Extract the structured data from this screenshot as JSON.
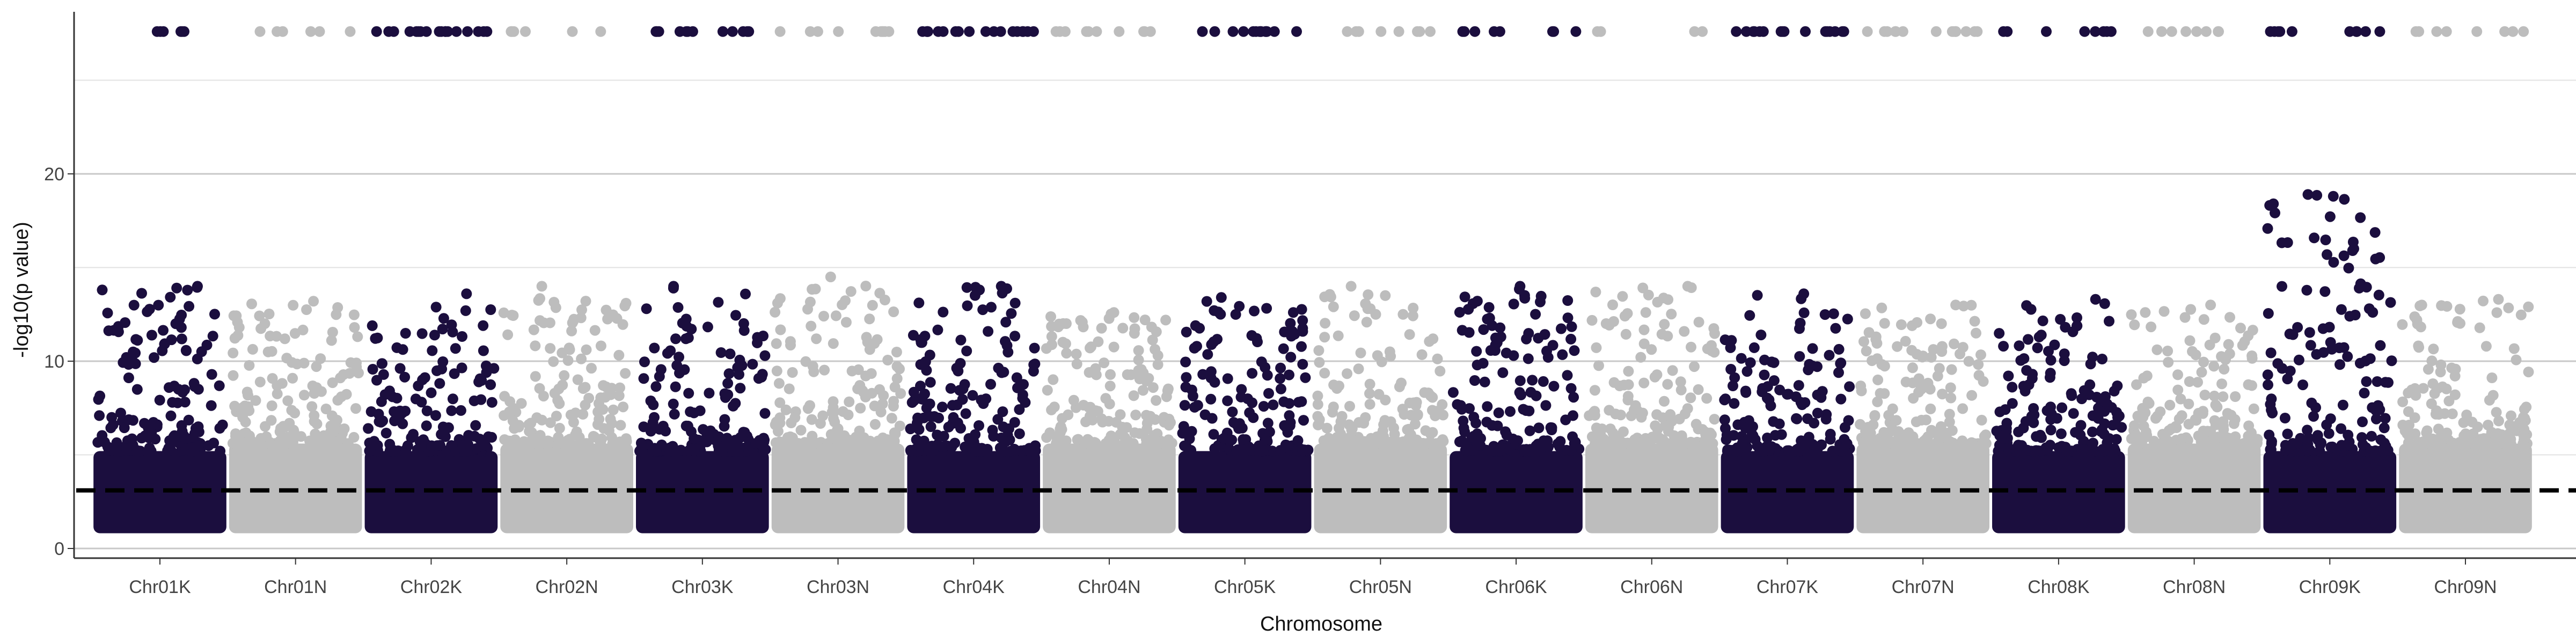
{
  "chart_data": {
    "type": "scatter",
    "title": "",
    "xlabel": "Chromosome",
    "ylabel": "-log10(p value)",
    "ylim": [
      0,
      29
    ],
    "yticks": [
      0,
      10,
      20
    ],
    "grid": "major y gridlines",
    "legend": "none",
    "threshold": {
      "value": 3.1,
      "style": "dashed black line"
    },
    "ceiling_value": 27.6,
    "colors": {
      "K": "#1b0e3e",
      "N": "#bdbdbd"
    },
    "categories": [
      "Chr01K",
      "Chr01N",
      "Chr02K",
      "Chr02N",
      "Chr03K",
      "Chr03N",
      "Chr04K",
      "Chr04N",
      "Chr05K",
      "Chr05N",
      "Chr06K",
      "Chr06N",
      "Chr07K",
      "Chr07N",
      "Chr08K",
      "Chr08N",
      "Chr09K",
      "Chr09N"
    ],
    "series": [
      {
        "category": "Chr01K",
        "group": "K",
        "peak": 14.0,
        "ceiling_hits": 6
      },
      {
        "category": "Chr01N",
        "group": "N",
        "peak": 13.2,
        "ceiling_hits": 6
      },
      {
        "category": "Chr02K",
        "group": "K",
        "peak": 13.6,
        "ceiling_hits": 18
      },
      {
        "category": "Chr02N",
        "group": "N",
        "peak": 14.0,
        "ceiling_hits": 6
      },
      {
        "category": "Chr03K",
        "group": "K",
        "peak": 14.0,
        "ceiling_hits": 12
      },
      {
        "category": "Chr03N",
        "group": "N",
        "peak": 14.5,
        "ceiling_hits": 10
      },
      {
        "category": "Chr04K",
        "group": "K",
        "peak": 14.0,
        "ceiling_hits": 18
      },
      {
        "category": "Chr04N",
        "group": "N",
        "peak": 12.6,
        "ceiling_hits": 10
      },
      {
        "category": "Chr05K",
        "group": "K",
        "peak": 13.4,
        "ceiling_hits": 14
      },
      {
        "category": "Chr05N",
        "group": "N",
        "peak": 14.0,
        "ceiling_hits": 8
      },
      {
        "category": "Chr06K",
        "group": "K",
        "peak": 14.0,
        "ceiling_hits": 8
      },
      {
        "category": "Chr06N",
        "group": "N",
        "peak": 14.0,
        "ceiling_hits": 4
      },
      {
        "category": "Chr07K",
        "group": "K",
        "peak": 13.6,
        "ceiling_hits": 16
      },
      {
        "category": "Chr07N",
        "group": "N",
        "peak": 13.0,
        "ceiling_hits": 14
      },
      {
        "category": "Chr08K",
        "group": "K",
        "peak": 13.3,
        "ceiling_hits": 8
      },
      {
        "category": "Chr08N",
        "group": "N",
        "peak": 13.0,
        "ceiling_hits": 8
      },
      {
        "category": "Chr09K",
        "group": "K",
        "peak": 18.9,
        "ceiling_hits": 10
      },
      {
        "category": "Chr09N",
        "group": "N",
        "peak": 13.3,
        "ceiling_hits": 8
      }
    ]
  }
}
